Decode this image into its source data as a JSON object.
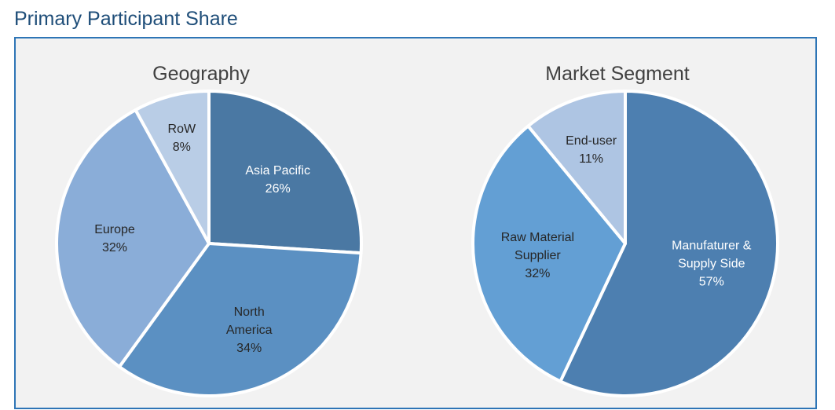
{
  "page_title": "Primary Participant Share",
  "chart_data": [
    {
      "type": "pie",
      "title": "Geography",
      "slices": [
        {
          "lines": [
            "Asia Pacific",
            "26%"
          ],
          "value": 26,
          "color": "#4a78a3",
          "text_color": "#ffffff"
        },
        {
          "lines": [
            "North",
            "America",
            "34%"
          ],
          "value": 34,
          "color": "#5b90c2",
          "text_color": "#262626"
        },
        {
          "lines": [
            "Europe",
            "32%"
          ],
          "value": 32,
          "color": "#8aadd8",
          "text_color": "#262626"
        },
        {
          "lines": [
            "RoW",
            "8%"
          ],
          "value": 8,
          "color": "#b9cde6",
          "text_color": "#262626"
        }
      ]
    },
    {
      "type": "pie",
      "title": "Market Segment",
      "slices": [
        {
          "lines": [
            "Manufaturer &",
            "Supply Side",
            "57%"
          ],
          "value": 57,
          "color": "#4d7fb0",
          "text_color": "#ffffff"
        },
        {
          "lines": [
            "Raw Material",
            "Supplier",
            "32%"
          ],
          "value": 32,
          "color": "#639fd4",
          "text_color": "#262626"
        },
        {
          "lines": [
            "End-user",
            "11%"
          ],
          "value": 11,
          "color": "#aec5e3",
          "text_color": "#262626"
        }
      ]
    }
  ]
}
